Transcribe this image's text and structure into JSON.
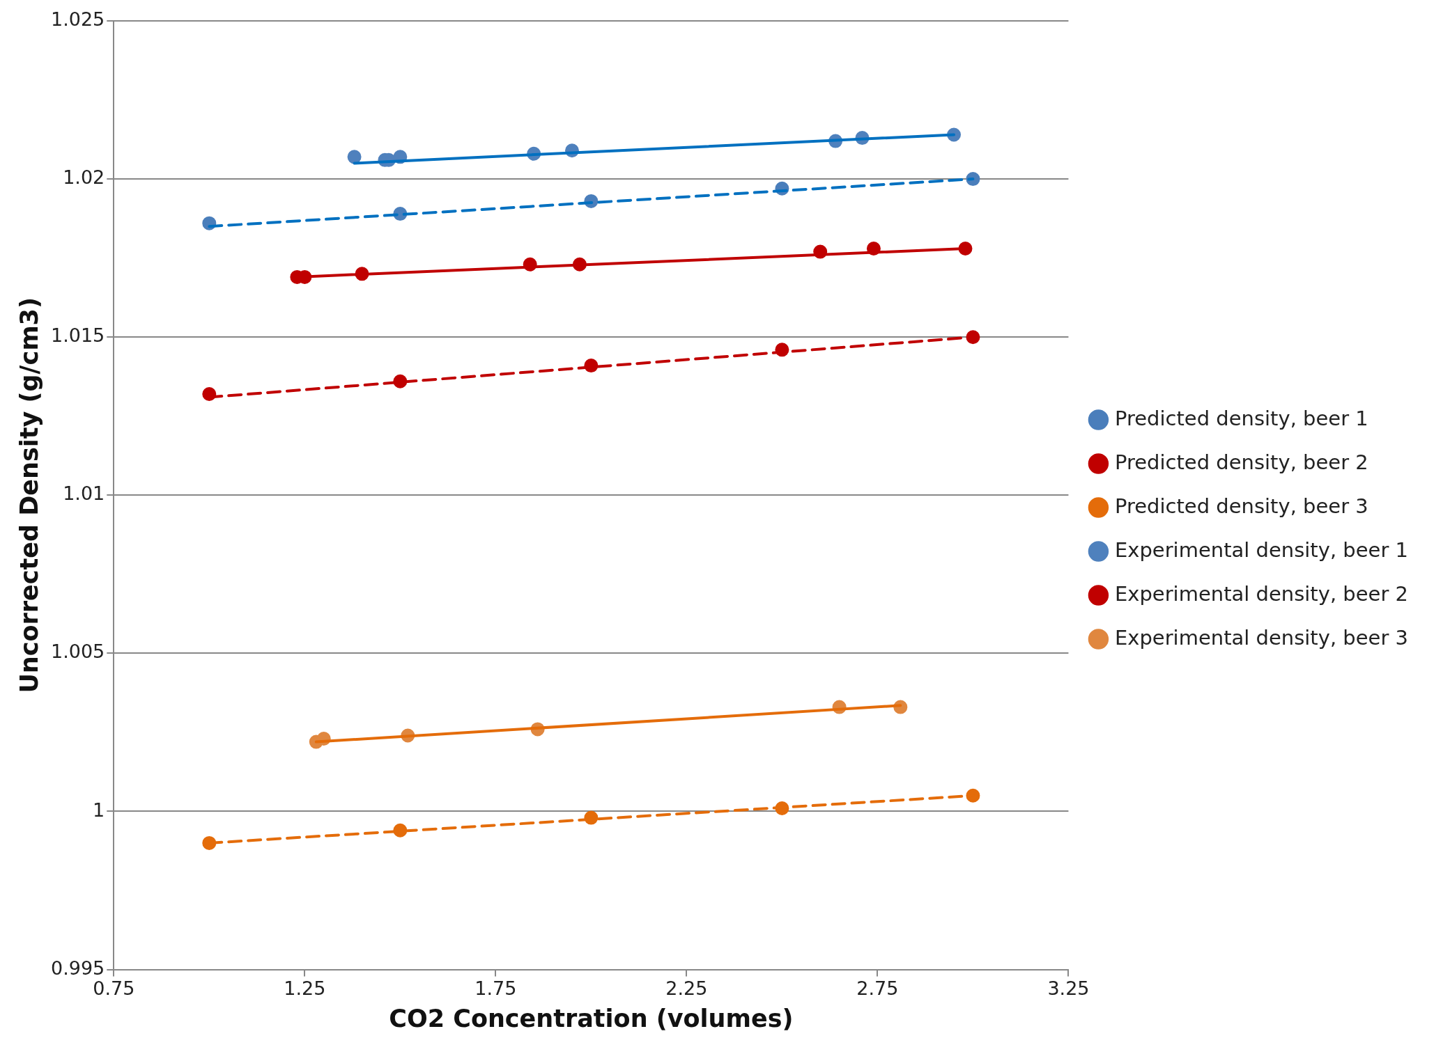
{
  "chart_data": {
    "type": "scatter",
    "xlabel": "CO2 Concentration (volumes)",
    "ylabel": "Uncorrected Density (g/cm3)",
    "xlim": [
      0.75,
      3.25
    ],
    "xticks": [
      0.75,
      1.25,
      1.75,
      2.25,
      2.75,
      3.25
    ],
    "ylim": [
      0.995,
      1.025
    ],
    "yticks": [
      0.995,
      1,
      1.005,
      1.01,
      1.015,
      1.02,
      1.025
    ],
    "grid": "y",
    "legend": "right",
    "marker": "circle",
    "series": [
      {
        "name": "Predicted density, beer 1",
        "color": "#4a7ebb",
        "x": [
          1,
          1.5,
          2,
          2.5,
          3
        ],
        "values": [
          1.0186,
          1.0189,
          1.0193,
          1.0197,
          1.02
        ]
      },
      {
        "name": "Predicted density, beer 2",
        "color": "#c00000",
        "x": [
          1,
          1.5,
          2,
          2.5,
          3
        ],
        "values": [
          1.0132,
          1.0136,
          1.0141,
          1.0146,
          1.015
        ]
      },
      {
        "name": "Predicted density, beer 3",
        "color": "#e46c0a",
        "x": [
          1,
          1.5,
          2,
          2.5,
          3
        ],
        "values": [
          0.999,
          0.9994,
          0.9998,
          1.0001,
          1.0005
        ]
      },
      {
        "name": "Experimental density, beer 1",
        "color": "#4f81bd",
        "x": [
          1.38,
          1.46,
          1.47,
          1.5,
          1.85,
          1.95,
          2.64,
          2.71,
          2.95
        ],
        "values": [
          1.0207,
          1.0206,
          1.0206,
          1.0207,
          1.0208,
          1.0209,
          1.0212,
          1.0213,
          1.0214
        ]
      },
      {
        "name": "Experimental density, beer 2",
        "color": "#c00000",
        "x": [
          1.23,
          1.25,
          1.4,
          1.84,
          1.97,
          2.6,
          2.74,
          2.98
        ],
        "values": [
          1.0169,
          1.0169,
          1.017,
          1.0173,
          1.0173,
          1.0177,
          1.0178,
          1.0178
        ]
      },
      {
        "name": "Experimental density, beer 3",
        "color": "#e0873f",
        "x": [
          1.28,
          1.3,
          1.52,
          1.86,
          2.65,
          2.81
        ],
        "values": [
          1.0022,
          1.0023,
          1.0024,
          1.0026,
          1.0033,
          1.0033
        ]
      },
      {
        "type": "line",
        "color": "#0070c0",
        "line_style": "dashed",
        "marker": "none",
        "x": [
          1,
          3
        ],
        "values": [
          1.0185,
          1.02
        ]
      },
      {
        "type": "line",
        "color": "#c00000",
        "line_style": "dashed",
        "marker": "none",
        "x": [
          1,
          3
        ],
        "values": [
          1.0131,
          1.015
        ]
      },
      {
        "type": "line",
        "color": "#e46c0a",
        "line_style": "dashed",
        "marker": "none",
        "x": [
          1,
          3
        ],
        "values": [
          0.999,
          1.0005
        ]
      },
      {
        "type": "line",
        "color": "#0070c0",
        "line_style": "solid",
        "marker": "none",
        "x": [
          1.38,
          2.95
        ],
        "values": [
          1.0205,
          1.0214
        ]
      },
      {
        "type": "line",
        "color": "#c00000",
        "line_style": "solid",
        "marker": "none",
        "x": [
          1.23,
          2.98
        ],
        "values": [
          1.0169,
          1.0178
        ]
      },
      {
        "type": "line",
        "color": "#e46c0a",
        "line_style": "solid",
        "marker": "none",
        "x": [
          1.28,
          2.81
        ],
        "values": [
          1.0022,
          1.00335
        ]
      }
    ]
  }
}
